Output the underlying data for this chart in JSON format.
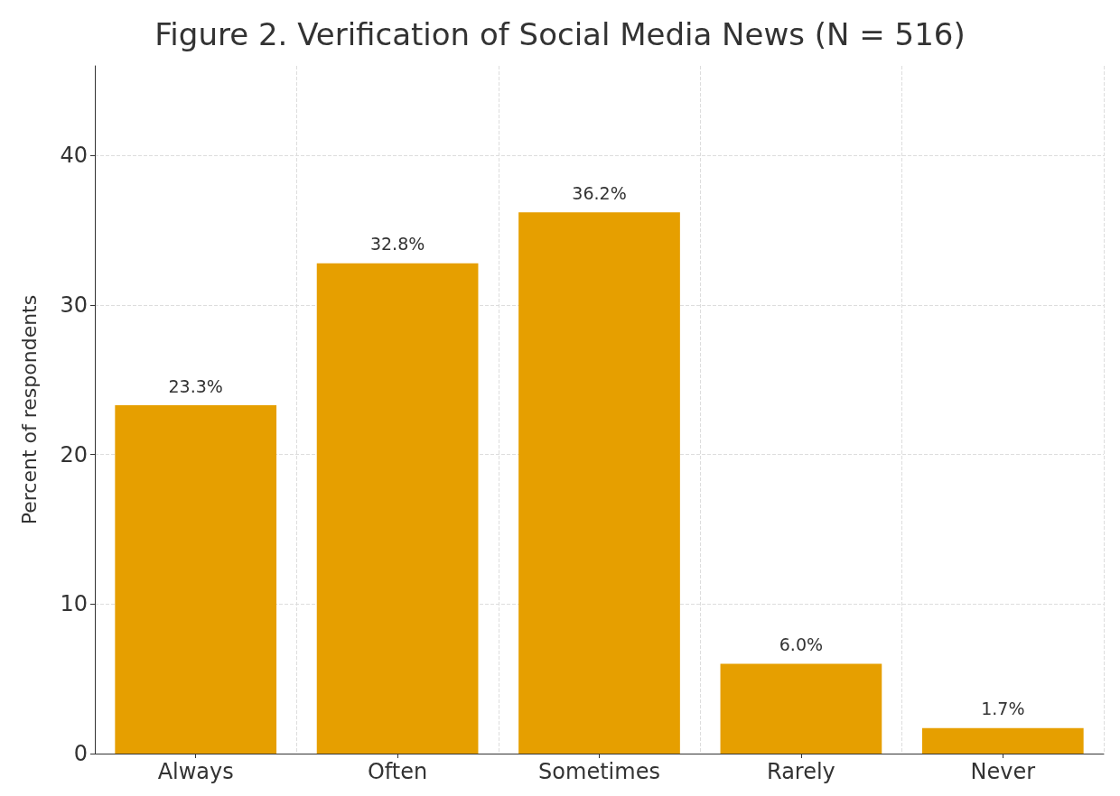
{
  "chart_data": {
    "type": "bar",
    "title": "Figure 2. Verification of Social Media News (N = 516)",
    "ylabel": "Percent of respondents",
    "categories": [
      "Always",
      "Often",
      "Sometimes",
      "Rarely",
      "Never"
    ],
    "values": [
      23.3,
      32.8,
      36.2,
      6.0,
      1.7
    ],
    "value_labels": [
      "23.3%",
      "32.8%",
      "36.2%",
      "6.0%",
      "1.7%"
    ],
    "color": "#e69f00",
    "ylim": [
      0,
      46
    ],
    "yticks": [
      0,
      10,
      20,
      30,
      40
    ],
    "grid": true
  }
}
